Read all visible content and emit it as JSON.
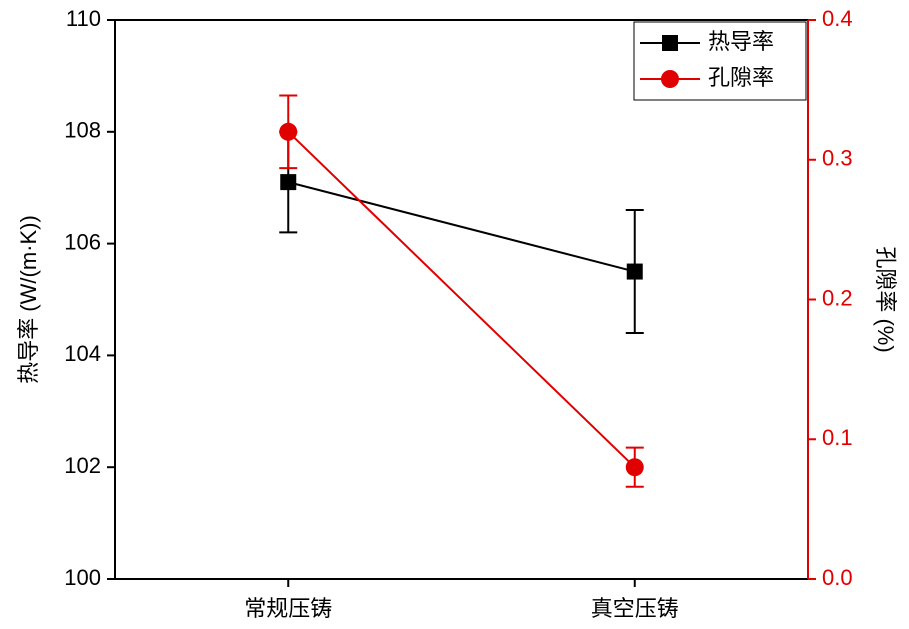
{
  "chart_data": {
    "type": "line",
    "categories": [
      "常规压铸",
      "真空压铸"
    ],
    "y_label": "热导率 (W/(m·K))",
    "y2_label": "孔隙率 (%)",
    "ylim": [
      100,
      110
    ],
    "yticks": [
      100,
      102,
      104,
      106,
      108,
      110
    ],
    "y2lim": [
      0,
      0.4
    ],
    "y2ticks": [
      {
        "value": 0,
        "label": "0.0"
      },
      0.1,
      0.2,
      0.3,
      0.4
    ],
    "y2_color": "#e00000",
    "legend": "top-right",
    "series": [
      {
        "name": "热导率",
        "color": "#000000",
        "marker": "square",
        "values": [
          107.1,
          105.5
        ],
        "errors": [
          0.9,
          1.1
        ]
      },
      {
        "name": "孔隙率",
        "color": "#e00000",
        "marker": "circle",
        "axis": "y2",
        "values": [
          0.32,
          0.08
        ],
        "errors": [
          0.026,
          0.014
        ]
      }
    ]
  }
}
